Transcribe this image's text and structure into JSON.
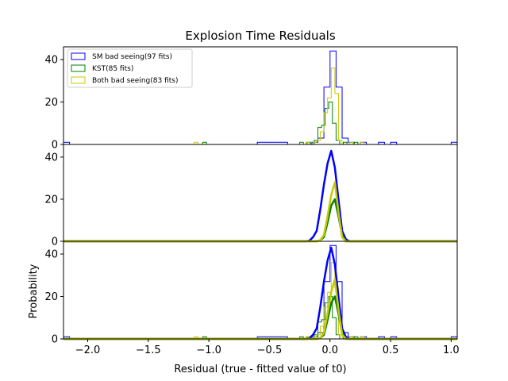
{
  "chart_data": {
    "type": "histogram",
    "title": "Explosion Time Residuals",
    "xlabel": "Residual (true - fitted value of t0)",
    "ylabel": "Probability",
    "xlim": [
      -2.2,
      1.05
    ],
    "ylim": [
      0,
      46
    ],
    "x_ticks": [
      -2.0,
      -1.5,
      -1.0,
      -0.5,
      0.0,
      0.5,
      1.0
    ],
    "x_tick_labels": [
      "−2.0",
      "−1.5",
      "−1.0",
      "−0.5",
      "0.0",
      "0.5",
      "1.0"
    ],
    "y_ticks": [
      0,
      20,
      40
    ],
    "colors": {
      "sm": "#0000ff",
      "kst": "#008000",
      "both": "#c8c800"
    },
    "legend": {
      "placement": "upper-left",
      "entries": [
        {
          "key": "sm",
          "label": "SM bad seeing(97 fits)"
        },
        {
          "key": "kst",
          "label": "KST(85 fits)"
        },
        {
          "key": "both",
          "label": "Both bad seeing(83 fits)"
        }
      ]
    },
    "panels": [
      {
        "id": "top",
        "content": "histograms"
      },
      {
        "id": "middle",
        "content": "density-curves"
      },
      {
        "id": "bottom",
        "content": "histograms+curves",
        "ylabel": "Probability"
      }
    ],
    "histograms": {
      "sm": {
        "edges": [
          -2.2,
          -2.15,
          -0.6,
          -0.35,
          -0.15,
          -0.1,
          -0.05,
          0.0,
          0.05,
          0.1,
          0.15,
          0.2,
          0.25,
          0.3,
          0.4,
          0.45,
          0.5,
          0.55,
          1.0,
          1.05
        ],
        "values": [
          1,
          0,
          1,
          0,
          1,
          3,
          27,
          44,
          27,
          3,
          1,
          0,
          1,
          0,
          1,
          0,
          1,
          0,
          1
        ]
      },
      "kst": {
        "edges": [
          -1.05,
          -1.02,
          -0.25,
          -0.22,
          -0.19,
          -0.16,
          -0.13,
          -0.1,
          -0.07,
          -0.04,
          -0.01,
          0.02,
          0.05,
          0.08,
          0.11,
          0.14,
          0.2,
          0.23
        ],
        "values": [
          1,
          0,
          1,
          0,
          1,
          0,
          2,
          8,
          9,
          17,
          20,
          10,
          2,
          0,
          1,
          0,
          1
        ]
      },
      "both": {
        "edges": [
          -1.12,
          -1.09,
          -0.2,
          -0.17,
          -0.14,
          -0.11,
          -0.08,
          -0.05,
          -0.02,
          0.01,
          0.04,
          0.07,
          0.1,
          0.16,
          0.19,
          0.25,
          0.28
        ],
        "values": [
          1,
          0,
          1,
          0,
          1,
          2,
          6,
          15,
          22,
          36,
          24,
          2,
          0,
          1,
          0,
          1
        ]
      }
    },
    "curves": {
      "x": [
        -2.2,
        -0.2,
        -0.17,
        -0.14,
        -0.11,
        -0.08,
        -0.05,
        -0.02,
        0.01,
        0.04,
        0.07,
        0.1,
        0.13,
        0.16,
        0.19,
        0.22,
        1.05
      ],
      "sm": [
        0,
        0,
        0.3,
        2,
        5,
        15,
        27,
        37,
        43,
        35,
        20,
        5,
        1,
        0,
        0,
        0,
        0
      ],
      "kst": [
        0,
        0,
        0,
        0,
        0,
        0.5,
        2,
        9,
        17,
        20,
        12,
        3,
        0,
        0,
        0,
        0,
        0
      ],
      "both": [
        0,
        0,
        0,
        0,
        0,
        0.5,
        3,
        12,
        22,
        28,
        14,
        2,
        0,
        0,
        0,
        0,
        0
      ]
    }
  }
}
